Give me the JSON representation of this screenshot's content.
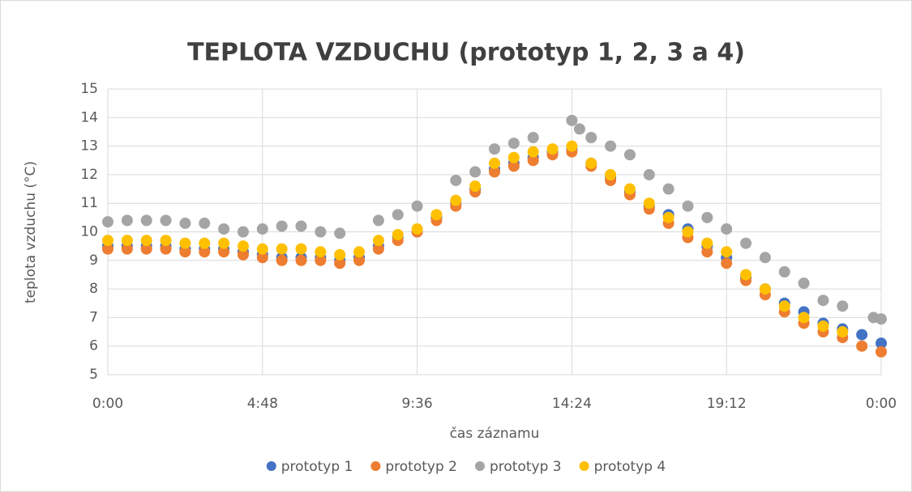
{
  "chart_data": {
    "type": "scatter",
    "title": "TEPLOTA VZDUCHU (prototyp 1, 2, 3 a 4)",
    "xlabel": "čas záznamu",
    "ylabel": "teplota vzduchu (°C)",
    "xlim": [
      0,
      1
    ],
    "xticks": [
      {
        "value": 0,
        "label": "0:00"
      },
      {
        "value": 0.2,
        "label": "4:48"
      },
      {
        "value": 0.4,
        "label": "9:36"
      },
      {
        "value": 0.6,
        "label": "14:24"
      },
      {
        "value": 0.8,
        "label": "19:12"
      },
      {
        "value": 1,
        "label": "0:00"
      }
    ],
    "ylim": [
      5,
      15
    ],
    "yticks": [
      5,
      6,
      7,
      8,
      9,
      10,
      11,
      12,
      13,
      14,
      15
    ],
    "grid": true,
    "legend": "bottom",
    "series": [
      {
        "name": "prototyp 1",
        "color": "#4472c4",
        "x": [
          0,
          0.025,
          0.05,
          0.075,
          0.1,
          0.125,
          0.15,
          0.175,
          0.2,
          0.225,
          0.25,
          0.275,
          0.3,
          0.325,
          0.35,
          0.375,
          0.4,
          0.425,
          0.45,
          0.475,
          0.5,
          0.525,
          0.55,
          0.575,
          0.6,
          0.625,
          0.65,
          0.675,
          0.7,
          0.725,
          0.75,
          0.775,
          0.8,
          0.825,
          0.85,
          0.875,
          0.9,
          0.925,
          0.95,
          0.975,
          1
        ],
        "values": [
          9.5,
          9.5,
          9.5,
          9.5,
          9.4,
          9.4,
          9.4,
          9.3,
          9.2,
          9.1,
          9.1,
          9.1,
          9.0,
          9.1,
          9.5,
          9.8,
          10.0,
          10.5,
          11.0,
          11.5,
          12.2,
          12.4,
          12.6,
          12.8,
          12.9,
          12.4,
          11.9,
          11.4,
          10.9,
          10.6,
          10.1,
          9.5,
          9.1,
          8.4,
          8.0,
          7.5,
          7.2,
          6.8,
          6.6,
          6.4,
          6.1
        ]
      },
      {
        "name": "prototyp 2",
        "color": "#ed7d31",
        "x": [
          0,
          0.025,
          0.05,
          0.075,
          0.1,
          0.125,
          0.15,
          0.175,
          0.2,
          0.225,
          0.25,
          0.275,
          0.3,
          0.325,
          0.35,
          0.375,
          0.4,
          0.425,
          0.45,
          0.475,
          0.5,
          0.525,
          0.55,
          0.575,
          0.6,
          0.625,
          0.65,
          0.675,
          0.7,
          0.725,
          0.75,
          0.775,
          0.8,
          0.825,
          0.85,
          0.875,
          0.9,
          0.925,
          0.95,
          0.975,
          1
        ],
        "values": [
          9.4,
          9.4,
          9.4,
          9.4,
          9.3,
          9.3,
          9.3,
          9.2,
          9.1,
          9.0,
          9.0,
          9.0,
          8.9,
          9.0,
          9.4,
          9.7,
          10.0,
          10.4,
          10.9,
          11.4,
          12.1,
          12.3,
          12.5,
          12.7,
          12.8,
          12.3,
          11.8,
          11.3,
          10.8,
          10.3,
          9.8,
          9.3,
          8.9,
          8.3,
          7.8,
          7.2,
          6.8,
          6.5,
          6.3,
          6.0,
          5.8
        ]
      },
      {
        "name": "prototyp 3",
        "color": "#a5a5a5",
        "x": [
          0,
          0.025,
          0.05,
          0.075,
          0.1,
          0.125,
          0.15,
          0.175,
          0.2,
          0.225,
          0.25,
          0.275,
          0.3,
          0.35,
          0.375,
          0.4,
          0.45,
          0.475,
          0.5,
          0.525,
          0.55,
          0.6,
          0.61,
          0.625,
          0.65,
          0.675,
          0.7,
          0.725,
          0.75,
          0.775,
          0.8,
          0.825,
          0.85,
          0.875,
          0.9,
          0.925,
          0.95,
          0.99,
          1
        ],
        "values": [
          10.35,
          10.4,
          10.4,
          10.4,
          10.3,
          10.3,
          10.1,
          10.0,
          10.1,
          10.2,
          10.2,
          10.0,
          9.95,
          10.4,
          10.6,
          10.9,
          11.8,
          12.1,
          12.9,
          13.1,
          13.3,
          13.9,
          13.6,
          13.3,
          13.0,
          12.7,
          12.0,
          11.5,
          10.9,
          10.5,
          10.1,
          9.6,
          9.1,
          8.6,
          8.2,
          7.6,
          7.4,
          7.0,
          6.95
        ]
      },
      {
        "name": "prototyp 4",
        "color": "#ffc000",
        "x": [
          0,
          0.025,
          0.05,
          0.075,
          0.1,
          0.125,
          0.15,
          0.175,
          0.2,
          0.225,
          0.25,
          0.275,
          0.3,
          0.325,
          0.35,
          0.375,
          0.4,
          0.425,
          0.45,
          0.475,
          0.5,
          0.525,
          0.55,
          0.575,
          0.6,
          0.625,
          0.65,
          0.675,
          0.7,
          0.725,
          0.75,
          0.775,
          0.8,
          0.825,
          0.85,
          0.875,
          0.9,
          0.925,
          0.95
        ],
        "values": [
          9.7,
          9.7,
          9.7,
          9.7,
          9.6,
          9.6,
          9.6,
          9.5,
          9.4,
          9.4,
          9.4,
          9.3,
          9.2,
          9.3,
          9.7,
          9.9,
          10.1,
          10.6,
          11.1,
          11.6,
          12.4,
          12.6,
          12.8,
          12.9,
          13.0,
          12.4,
          12.0,
          11.5,
          11.0,
          10.5,
          10.0,
          9.6,
          9.3,
          8.5,
          8.0,
          7.4,
          7.0,
          6.7,
          6.5
        ]
      }
    ]
  }
}
